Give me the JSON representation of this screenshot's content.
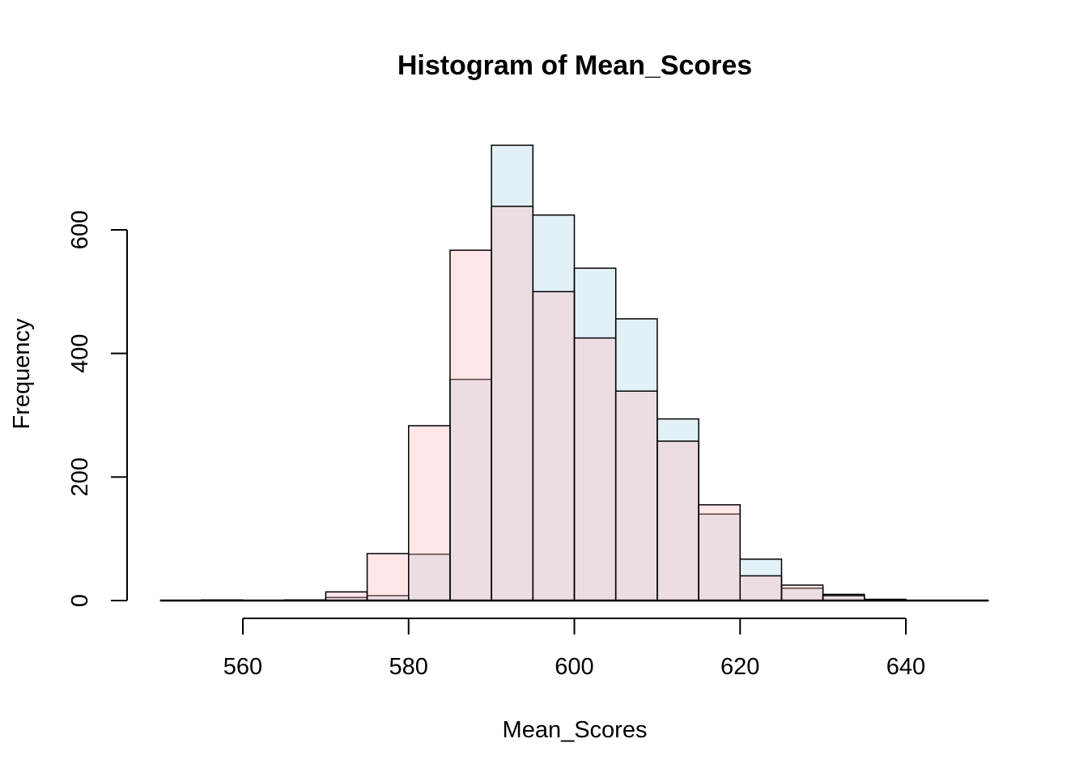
{
  "chart_data": {
    "type": "bar",
    "title": "Histogram of Mean_Scores",
    "xlabel": "Mean_Scores",
    "ylabel": "Frequency",
    "xlim": [
      550,
      650
    ],
    "ylim": [
      0,
      760
    ],
    "x_ticks": [
      560,
      580,
      600,
      620,
      640
    ],
    "y_ticks": [
      0,
      200,
      400,
      600
    ],
    "bin_width": 5,
    "grid": false,
    "series": [
      {
        "color": "#ADD8E6",
        "opacity": 0.35,
        "bins": [
          {
            "start": 555,
            "count": 1
          },
          {
            "start": 560,
            "count": 0
          },
          {
            "start": 565,
            "count": 1
          },
          {
            "start": 570,
            "count": 5
          },
          {
            "start": 575,
            "count": 8
          },
          {
            "start": 580,
            "count": 75
          },
          {
            "start": 585,
            "count": 358
          },
          {
            "start": 590,
            "count": 737
          },
          {
            "start": 595,
            "count": 624
          },
          {
            "start": 600,
            "count": 538
          },
          {
            "start": 605,
            "count": 456
          },
          {
            "start": 610,
            "count": 294
          },
          {
            "start": 615,
            "count": 140
          },
          {
            "start": 620,
            "count": 67
          },
          {
            "start": 625,
            "count": 20
          },
          {
            "start": 630,
            "count": 10
          },
          {
            "start": 635,
            "count": 2
          }
        ]
      },
      {
        "color": "#FFB6C1",
        "opacity": 0.35,
        "bins": [
          {
            "start": 555,
            "count": 1
          },
          {
            "start": 560,
            "count": 0
          },
          {
            "start": 565,
            "count": 1
          },
          {
            "start": 570,
            "count": 14
          },
          {
            "start": 575,
            "count": 76
          },
          {
            "start": 580,
            "count": 283
          },
          {
            "start": 585,
            "count": 567
          },
          {
            "start": 590,
            "count": 638
          },
          {
            "start": 595,
            "count": 500
          },
          {
            "start": 600,
            "count": 425
          },
          {
            "start": 605,
            "count": 339
          },
          {
            "start": 610,
            "count": 258
          },
          {
            "start": 615,
            "count": 155
          },
          {
            "start": 620,
            "count": 40
          },
          {
            "start": 625,
            "count": 25
          },
          {
            "start": 630,
            "count": 8
          },
          {
            "start": 635,
            "count": 1
          }
        ]
      }
    ]
  }
}
